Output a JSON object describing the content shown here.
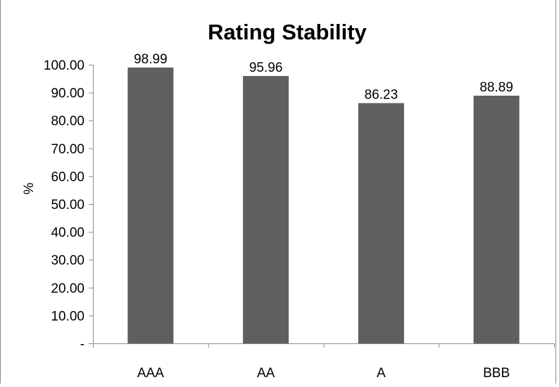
{
  "chart_data": {
    "type": "bar",
    "title": "Rating Stability",
    "xlabel": "",
    "ylabel": "%",
    "categories": [
      "AAA",
      "AA",
      "A",
      "BBB"
    ],
    "values": [
      98.99,
      95.96,
      86.23,
      88.89
    ],
    "data_labels": [
      "98.99",
      "95.96",
      "86.23",
      "88.89"
    ],
    "ylim": [
      0,
      100
    ],
    "yticks": [
      0,
      10,
      20,
      30,
      40,
      50,
      60,
      70,
      80,
      90,
      100
    ],
    "ytick_labels": [
      "-",
      "10.00",
      "20.00",
      "30.00",
      "40.00",
      "50.00",
      "60.00",
      "70.00",
      "80.00",
      "90.00",
      "100.00"
    ],
    "grid": false,
    "legend": "none",
    "bar_color": "#5f5f5f",
    "axis_color": "#8c8c8c",
    "border_color": "#8c8c8c"
  }
}
